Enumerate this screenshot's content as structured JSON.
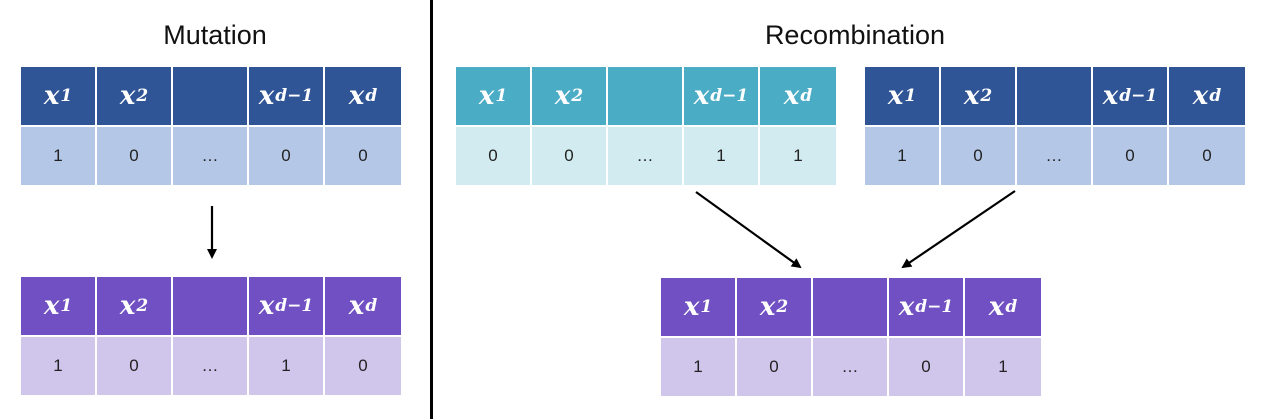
{
  "titles": {
    "mutation": "Mutation",
    "recombination": "Recombination"
  },
  "header_labels": [
    {
      "var": "x",
      "sub": "1"
    },
    {
      "var": "x",
      "sub": "2"
    },
    {
      "var": "",
      "sub": ""
    },
    {
      "var": "x",
      "sub": "d−1"
    },
    {
      "var": "x",
      "sub": "d"
    }
  ],
  "vectors": {
    "mutation_parent": {
      "values": [
        "1",
        "0",
        "…",
        "0",
        "0"
      ]
    },
    "mutation_child": {
      "values": [
        "1",
        "0",
        "…",
        "1",
        "0"
      ]
    },
    "recomb_parent_1": {
      "values": [
        "0",
        "0",
        "…",
        "1",
        "1"
      ]
    },
    "recomb_parent_2": {
      "values": [
        "1",
        "0",
        "…",
        "0",
        "0"
      ]
    },
    "recomb_child": {
      "values": [
        "1",
        "0",
        "…",
        "0",
        "1"
      ]
    }
  },
  "colors": {
    "blue_header": "#2f5597",
    "blue_values": "#b4c7e7",
    "teal_header": "#4bacc6",
    "teal_values": "#d2ebf0",
    "purple_header": "#7050c2",
    "purple_values": "#d0c6ec",
    "arrow": "#000000"
  }
}
